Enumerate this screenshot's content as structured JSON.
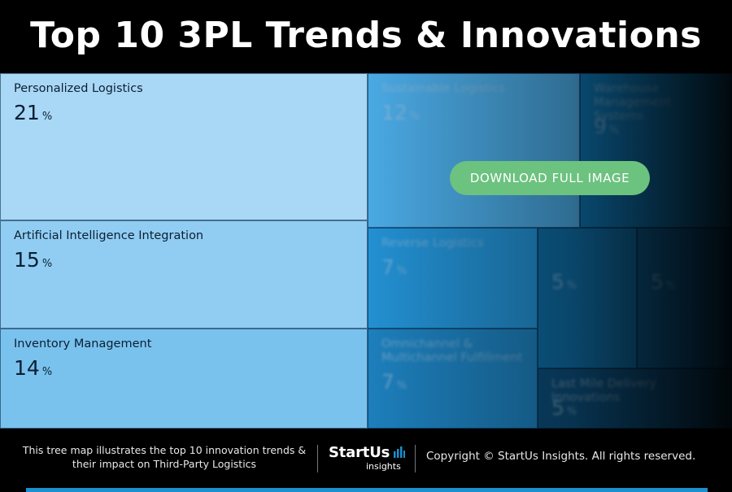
{
  "title": "Top 10 3PL Trends & Innovations",
  "chart_data": {
    "type": "treemap",
    "title": "Top 10 3PL Trends & Innovations",
    "unit": "%",
    "items": [
      {
        "label": "Personalized Logistics",
        "value": 21,
        "color": "#a9d8f6"
      },
      {
        "label": "Artificial Intelligence Integration",
        "value": 15,
        "color": "#91cdf2"
      },
      {
        "label": "Inventory Management",
        "value": 14,
        "color": "#7ac2ee"
      },
      {
        "label": "Sustainable Logistics",
        "value": 12,
        "color": "#4aa9e3"
      },
      {
        "label": "Warehouse Management Systems",
        "value": 9,
        "color": "#0e76b4"
      },
      {
        "label": "Reverse Logistics",
        "value": 7,
        "color": "#2390d2"
      },
      {
        "label": "Omnichannel & Multichannel Fulfillment",
        "value": 7,
        "color": "#1d7fbc"
      },
      {
        "label": "",
        "value": 5,
        "color": "#0f6da6"
      },
      {
        "label": "",
        "value": 5,
        "color": "#0b5e92"
      },
      {
        "label": "Last Mile Delivery Innovations",
        "value": 5,
        "color": "#0c4f7c"
      }
    ]
  },
  "download_button": {
    "label": "DOWNLOAD FULL IMAGE"
  },
  "footer": {
    "description": "This tree map illustrates the top 10 innovation trends & their impact on Third-Party Logistics",
    "logo_brand": "StartUs",
    "logo_sub": "insights",
    "copyright": "Copyright © StartUs Insights. All rights reserved."
  }
}
